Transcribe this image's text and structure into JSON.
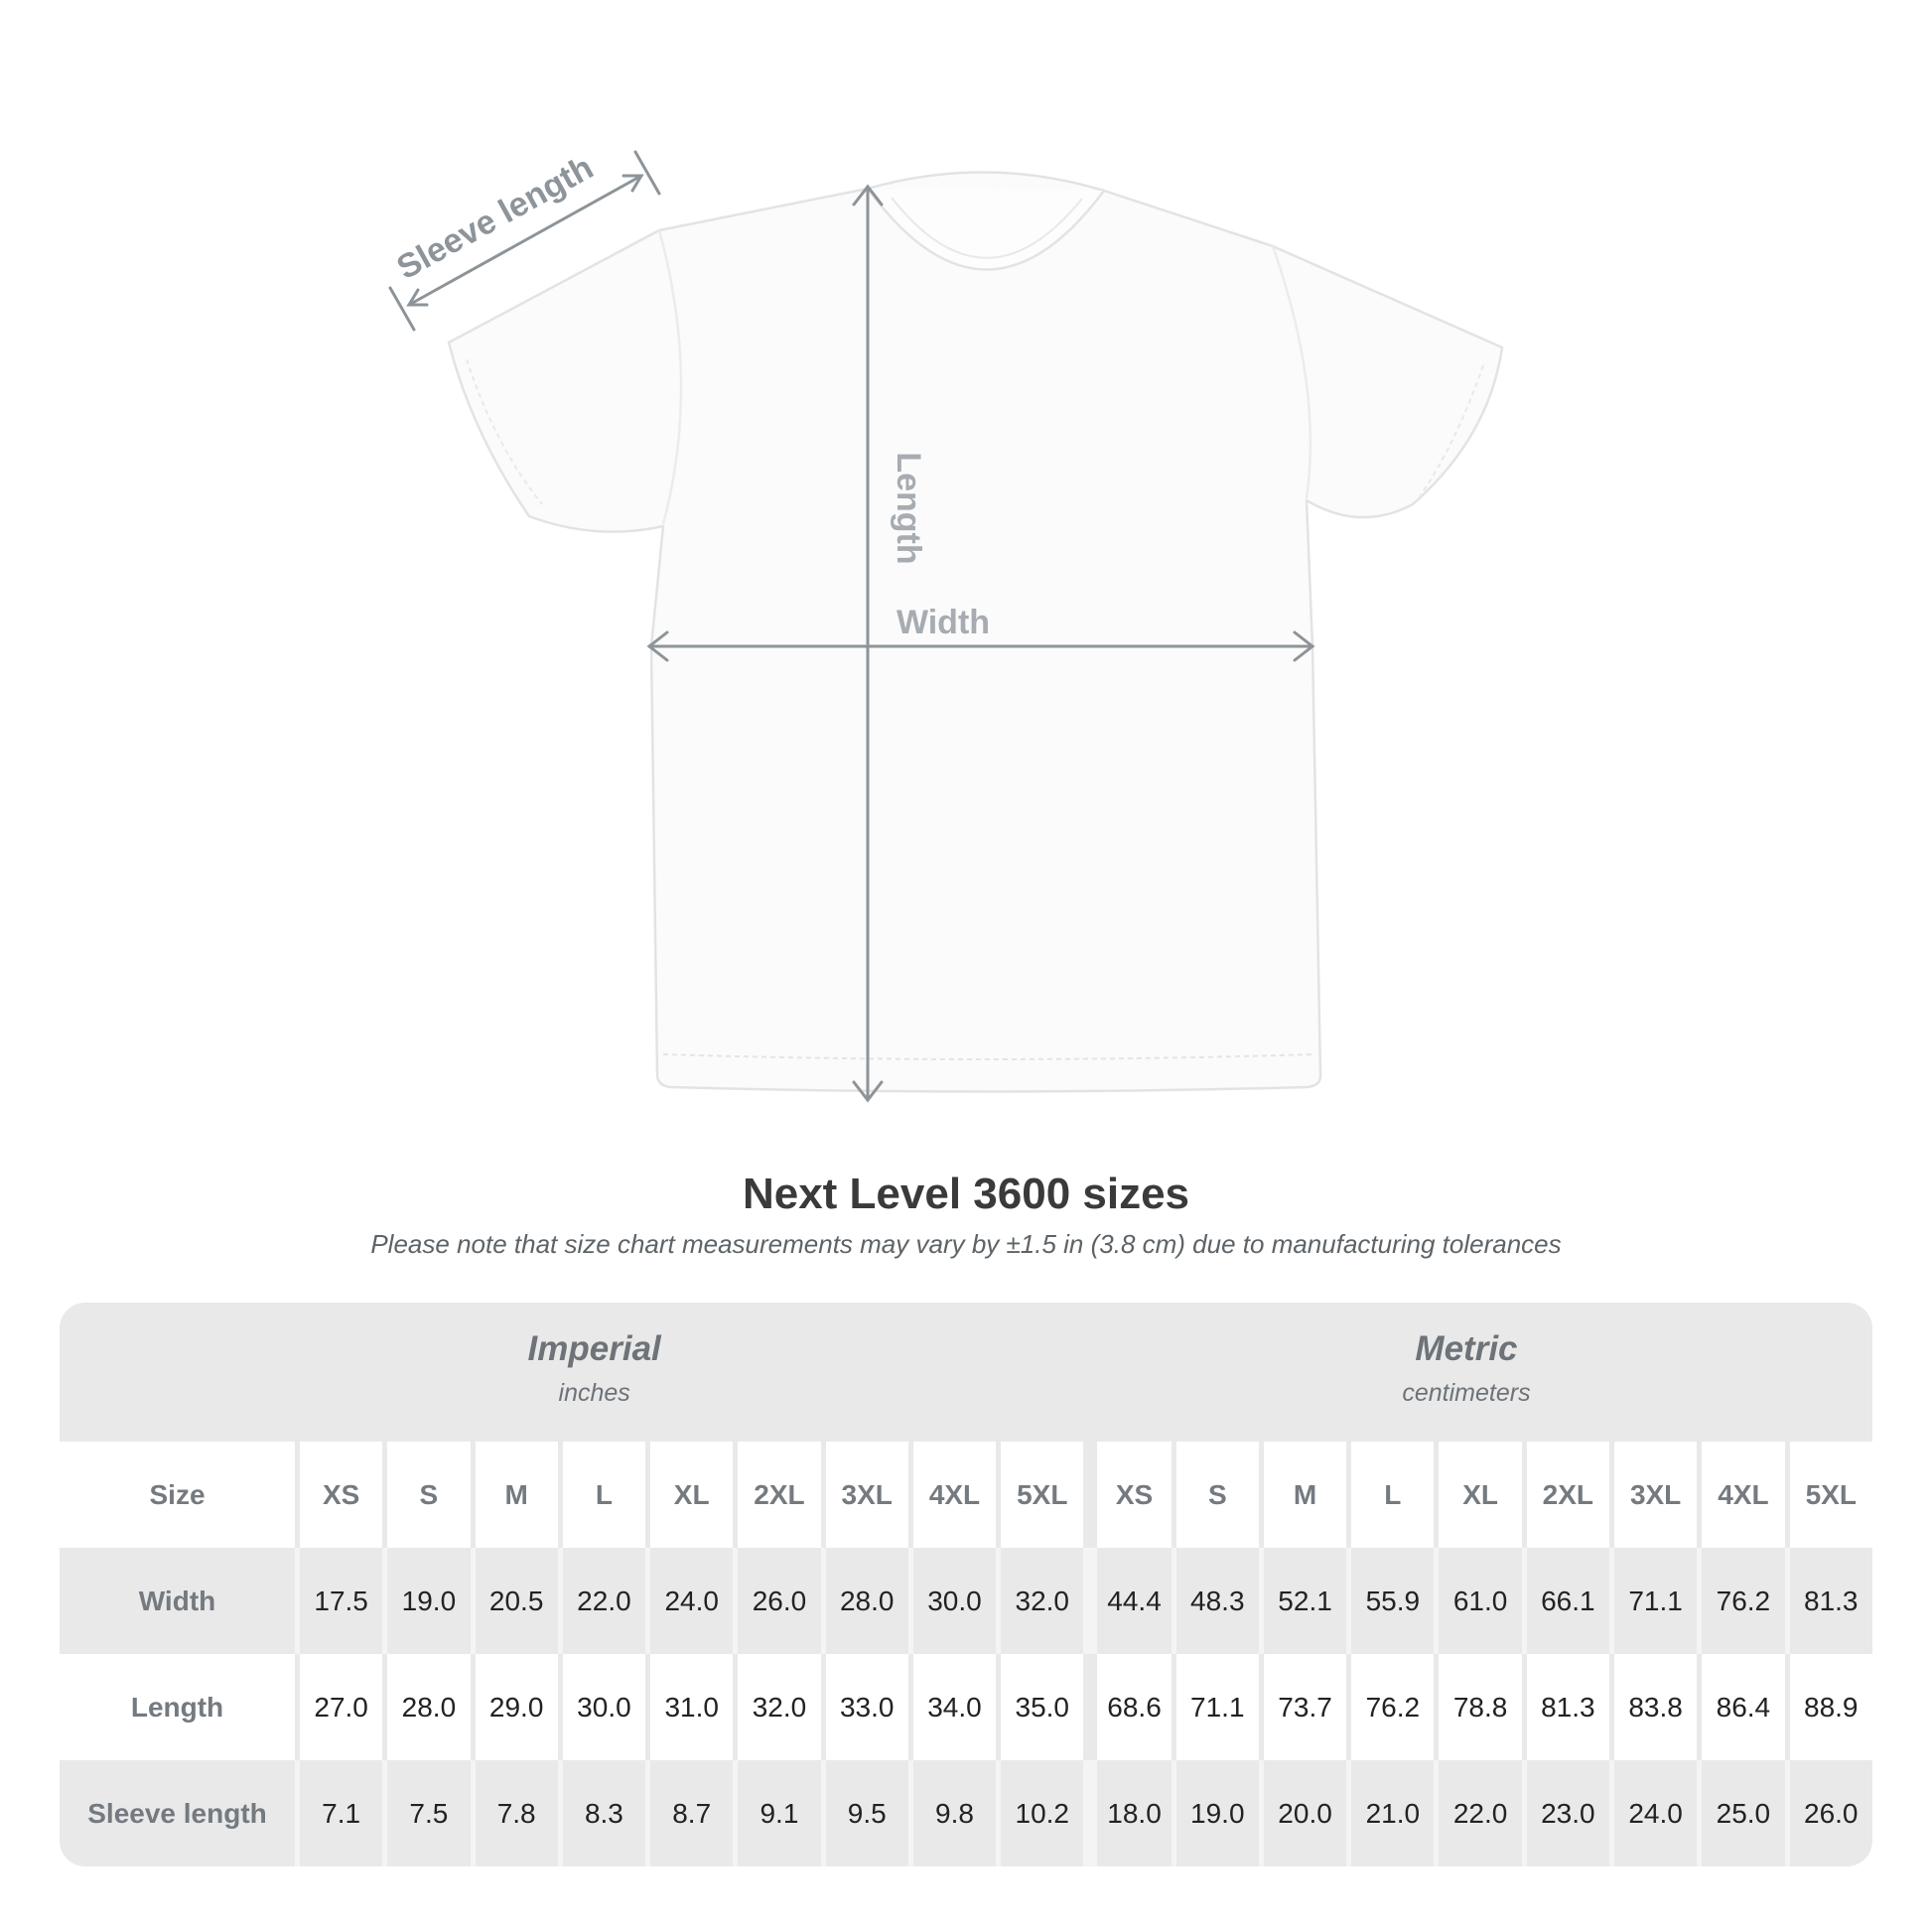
{
  "figure": {
    "labels": {
      "sleeve": "Sleeve length",
      "length": "Length",
      "width": "Width"
    },
    "colors": {
      "line": "#8d9499",
      "label_light": "#a6acb1",
      "label_dark": "#8d949a",
      "shirt_outline": "#e3e3e3",
      "shirt_fill": "#fbfbfb"
    }
  },
  "title": "Next Level 3600 sizes",
  "subtitle": "Please note that size chart measurements may vary by ±1.5 in (3.8 cm) due to manufacturing tolerances",
  "table": {
    "size_label": "Size",
    "unit_systems": [
      {
        "name": "Imperial",
        "unit": "inches"
      },
      {
        "name": "Metric",
        "unit": "centimeters"
      }
    ],
    "sizes": [
      "XS",
      "S",
      "M",
      "L",
      "XL",
      "2XL",
      "3XL",
      "4XL",
      "5XL"
    ],
    "rows": [
      {
        "label": "Width",
        "imperial": [
          "17.5",
          "19.0",
          "20.5",
          "22.0",
          "24.0",
          "26.0",
          "28.0",
          "30.0",
          "32.0"
        ],
        "metric": [
          "44.4",
          "48.3",
          "52.1",
          "55.9",
          "61.0",
          "66.1",
          "71.1",
          "76.2",
          "81.3"
        ]
      },
      {
        "label": "Length",
        "imperial": [
          "27.0",
          "28.0",
          "29.0",
          "30.0",
          "31.0",
          "32.0",
          "33.0",
          "34.0",
          "35.0"
        ],
        "metric": [
          "68.6",
          "71.1",
          "73.7",
          "76.2",
          "78.8",
          "81.3",
          "83.8",
          "86.4",
          "88.9"
        ]
      },
      {
        "label": "Sleeve length",
        "imperial": [
          "7.1",
          "7.5",
          "7.8",
          "8.3",
          "8.7",
          "9.1",
          "9.5",
          "9.8",
          "10.2"
        ],
        "metric": [
          "18.0",
          "19.0",
          "20.0",
          "21.0",
          "22.0",
          "23.0",
          "24.0",
          "25.0",
          "26.0"
        ]
      }
    ]
  }
}
